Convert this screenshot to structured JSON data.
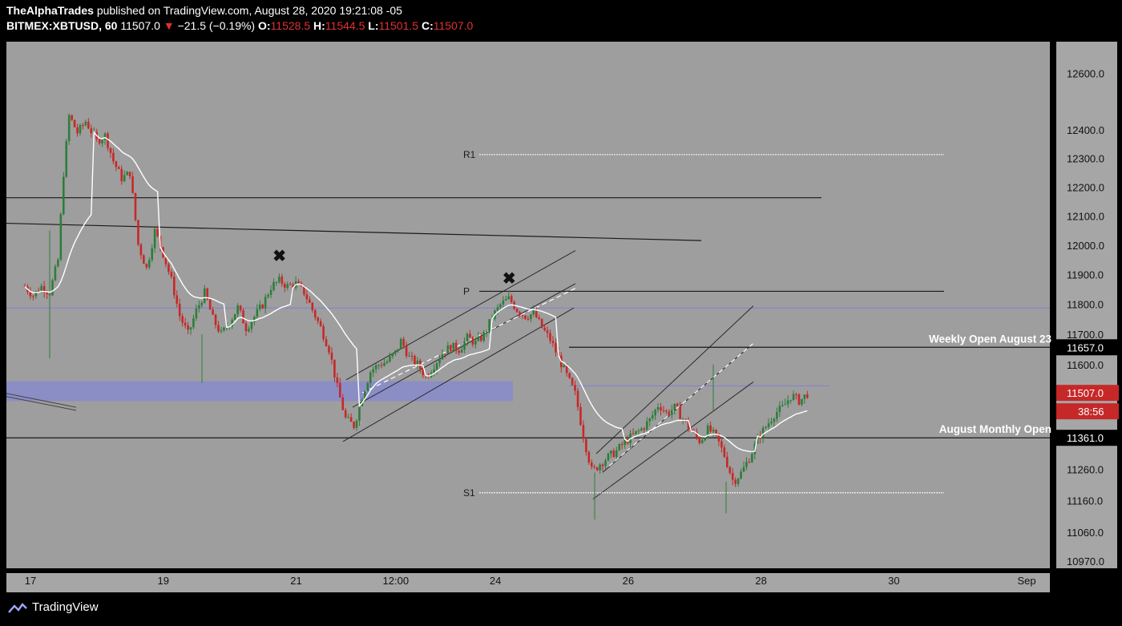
{
  "header": {
    "author": "TheAlphaTrades",
    "published_on": "published on TradingView.com, August 28, 2020 19:21:08 -05",
    "symbol": "BITMEX:XBTUSD, 60",
    "last": "11507.0",
    "change": "−21.5 (−0.19%)",
    "o_label": "O:",
    "o": "11528.5",
    "h_label": "H:",
    "h": "11544.5",
    "l_label": "L:",
    "l": "11501.5",
    "c_label": "C:",
    "c": "11507.0"
  },
  "footer": {
    "brand": "TradingView",
    "logo_icon": "tradingview-logo-icon"
  },
  "colors": {
    "background": "#000000",
    "plot_bg": "#9e9e9e",
    "axis_bg": "#a6a6a6",
    "candle_up": "#2e7d3a",
    "candle_down": "#c62828",
    "vwap": "#ffffff",
    "zone": "#7b7fe6",
    "price_badge": "#c62828"
  },
  "chart_data": {
    "type": "candlestick",
    "interval": "60",
    "y_scale": "log",
    "ylim": [
      10960,
      12700
    ],
    "y_ticks": [
      "12600.0",
      "12400.0",
      "12300.0",
      "12200.0",
      "12100.0",
      "12000.0",
      "11900.0",
      "11800.0",
      "11700.0",
      "11600.0",
      "11260.0",
      "11160.0",
      "11060.0",
      "10970.0"
    ],
    "x_ticks": [
      "17",
      "19",
      "21",
      "12:00",
      "24",
      "26",
      "28",
      "30",
      "Sep"
    ],
    "markers": [
      {
        "label": "11657.0",
        "price": 11657.0,
        "style": "white"
      },
      {
        "label": "11507.0",
        "price": 11507.0,
        "style": "red"
      },
      {
        "label": "38:56",
        "style": "red-sub"
      },
      {
        "label": "11361.0",
        "price": 11361.0,
        "style": "white"
      }
    ],
    "levels": [
      {
        "label": "R1",
        "price": 12313
      },
      {
        "label": "P",
        "price": 11844
      },
      {
        "label": "S1",
        "price": 11185
      },
      {
        "label": "Weekly Open August 23",
        "price": 11657
      },
      {
        "label": "August Monthly Open",
        "price": 11361
      }
    ],
    "x_marks": [
      {
        "date": "2020-08-20 20:00",
        "price": 11965
      },
      {
        "date": "2020-08-24 07:00",
        "price": 11888
      }
    ],
    "close_path": [
      [
        "2020-08-17 00:00",
        11860
      ],
      [
        "2020-08-17 03:00",
        11830
      ],
      [
        "2020-08-17 06:00",
        11860
      ],
      [
        "2020-08-17 09:00",
        11840
      ],
      [
        "2020-08-17 12:00",
        11950
      ],
      [
        "2020-08-17 14:00",
        12250
      ],
      [
        "2020-08-17 16:00",
        12450
      ],
      [
        "2020-08-17 19:00",
        12390
      ],
      [
        "2020-08-17 22:00",
        12430
      ],
      [
        "2020-08-18 02:00",
        12360
      ],
      [
        "2020-08-18 05:00",
        12380
      ],
      [
        "2020-08-18 08:00",
        12290
      ],
      [
        "2020-08-18 11:00",
        12230
      ],
      [
        "2020-08-18 14:00",
        12250
      ],
      [
        "2020-08-18 17:00",
        12000
      ],
      [
        "2020-08-18 20:00",
        11920
      ],
      [
        "2020-08-18 23:00",
        12050
      ],
      [
        "2020-08-19 02:00",
        11970
      ],
      [
        "2020-08-19 05:00",
        11880
      ],
      [
        "2020-08-19 08:00",
        11760
      ],
      [
        "2020-08-19 11:00",
        11700
      ],
      [
        "2020-08-19 14:00",
        11780
      ],
      [
        "2020-08-19 17:00",
        11840
      ],
      [
        "2020-08-19 20:00",
        11750
      ],
      [
        "2020-08-19 23:00",
        11700
      ],
      [
        "2020-08-20 02:00",
        11740
      ],
      [
        "2020-08-20 05:00",
        11790
      ],
      [
        "2020-08-20 08:00",
        11720
      ],
      [
        "2020-08-20 11:00",
        11760
      ],
      [
        "2020-08-20 14:00",
        11800
      ],
      [
        "2020-08-20 17:00",
        11860
      ],
      [
        "2020-08-20 20:00",
        11880
      ],
      [
        "2020-08-20 23:00",
        11860
      ],
      [
        "2020-08-21 02:00",
        11870
      ],
      [
        "2020-08-21 05:00",
        11840
      ],
      [
        "2020-08-21 08:00",
        11780
      ],
      [
        "2020-08-21 11:00",
        11720
      ],
      [
        "2020-08-21 14:00",
        11650
      ],
      [
        "2020-08-21 17:00",
        11520
      ],
      [
        "2020-08-21 20:00",
        11420
      ],
      [
        "2020-08-21 23:00",
        11400
      ],
      [
        "2020-08-22 02:00",
        11500
      ],
      [
        "2020-08-22 05:00",
        11580
      ],
      [
        "2020-08-22 08:00",
        11600
      ],
      [
        "2020-08-22 11:00",
        11610
      ],
      [
        "2020-08-22 14:00",
        11640
      ],
      [
        "2020-08-22 16:00",
        11680
      ],
      [
        "2020-08-22 19:00",
        11620
      ],
      [
        "2020-08-22 22:00",
        11600
      ],
      [
        "2020-08-23 01:00",
        11560
      ],
      [
        "2020-08-23 04:00",
        11600
      ],
      [
        "2020-08-23 07:00",
        11640
      ],
      [
        "2020-08-23 10:00",
        11660
      ],
      [
        "2020-08-23 13:00",
        11650
      ],
      [
        "2020-08-23 16:00",
        11690
      ],
      [
        "2020-08-23 19:00",
        11670
      ],
      [
        "2020-08-23 22:00",
        11700
      ],
      [
        "2020-08-24 01:00",
        11760
      ],
      [
        "2020-08-24 04:00",
        11800
      ],
      [
        "2020-08-24 07:00",
        11820
      ],
      [
        "2020-08-24 10:00",
        11780
      ],
      [
        "2020-08-24 13:00",
        11760
      ],
      [
        "2020-08-24 16:00",
        11770
      ],
      [
        "2020-08-24 19:00",
        11720
      ],
      [
        "2020-08-24 22:00",
        11680
      ],
      [
        "2020-08-25 01:00",
        11620
      ],
      [
        "2020-08-25 04:00",
        11560
      ],
      [
        "2020-08-25 07:00",
        11500
      ],
      [
        "2020-08-25 10:00",
        11360
      ],
      [
        "2020-08-25 13:00",
        11250
      ],
      [
        "2020-08-25 16:00",
        11280
      ],
      [
        "2020-08-25 19:00",
        11300
      ],
      [
        "2020-08-25 22:00",
        11320
      ],
      [
        "2020-08-26 01:00",
        11350
      ],
      [
        "2020-08-26 04:00",
        11370
      ],
      [
        "2020-08-26 07:00",
        11390
      ],
      [
        "2020-08-26 10:00",
        11420
      ],
      [
        "2020-08-26 13:00",
        11470
      ],
      [
        "2020-08-26 16:00",
        11440
      ],
      [
        "2020-08-26 19:00",
        11460
      ],
      [
        "2020-08-26 22:00",
        11420
      ],
      [
        "2020-08-27 01:00",
        11380
      ],
      [
        "2020-08-27 04:00",
        11350
      ],
      [
        "2020-08-27 07:00",
        11390
      ],
      [
        "2020-08-27 10:00",
        11360
      ],
      [
        "2020-08-27 13:00",
        11300
      ],
      [
        "2020-08-27 16:00",
        11220
      ],
      [
        "2020-08-27 19:00",
        11250
      ],
      [
        "2020-08-27 22:00",
        11300
      ],
      [
        "2020-08-28 01:00",
        11360
      ],
      [
        "2020-08-28 04:00",
        11400
      ],
      [
        "2020-08-28 07:00",
        11440
      ],
      [
        "2020-08-28 10:00",
        11460
      ],
      [
        "2020-08-28 13:00",
        11500
      ],
      [
        "2020-08-28 16:00",
        11480
      ],
      [
        "2020-08-28 19:00",
        11507
      ]
    ]
  }
}
